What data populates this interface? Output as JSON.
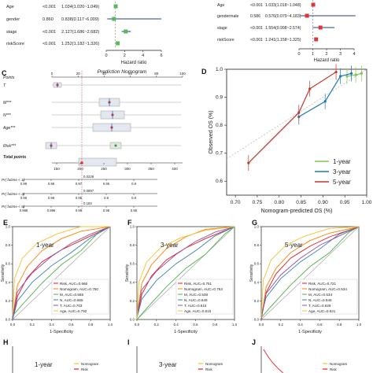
{
  "forest_left": {
    "rows": [
      {
        "name": "Age",
        "p": "<0.001",
        "hr": "1.034(1.020~1.049)"
      },
      {
        "name": "gender",
        "p": "0.860",
        "hr": "0.838(0.117~6.009)"
      },
      {
        "name": "stage",
        "p": "<0.001",
        "hr": "2.127(1.686~2.682)"
      },
      {
        "name": "riskScore",
        "p": "<0.001",
        "hr": "1.252(1.182~1.326)"
      }
    ],
    "axis_ticks": [
      "0",
      "2",
      "4",
      "6"
    ],
    "xlabel": "Hazard ratio"
  },
  "forest_right": {
    "rows": [
      {
        "name": "Age",
        "p": "<0.001",
        "hr": "1.033(1.018~1.048)"
      },
      {
        "name": "gendermale",
        "p": "0.586",
        "hr": "0.576(0.079~4.183)"
      },
      {
        "name": "stage",
        "p": "<0.001",
        "hr": "1.554(0.998~2.574)"
      },
      {
        "name": "riskScore",
        "p": "<0.001",
        "hr": "1.241(1.158~1.325)"
      }
    ],
    "axis_ticks": [
      "0",
      "1",
      "2",
      "3",
      "4"
    ],
    "xlabel": "Hazard ratio"
  },
  "panel_c": {
    "label": "C",
    "title": "Prediction Nomogram",
    "rows": [
      "Points",
      "T",
      "M***",
      "N***",
      "Age***",
      "Risk***",
      "Total points",
      "Pr( futime < 1)",
      "Pr( futime < 3)",
      "Pr( futime < 5)"
    ],
    "points_ticks": [
      "0",
      "20",
      "40",
      "60",
      "80",
      "100"
    ],
    "total_ticks": [
      "150",
      "200",
      "250",
      "300",
      "350",
      "400"
    ],
    "red_values": [
      "0.0228",
      "0.0897",
      "0.183"
    ],
    "pr1_ticks": [
      "0.99",
      "0.98",
      "0.97",
      "0.95",
      "0.9"
    ],
    "pr3_ticks": [
      "0.99",
      "0.98",
      "0.95",
      "0.9",
      "0.8"
    ],
    "pr5_ticks": [
      "0.998",
      "0.996",
      "0.99",
      "0.98",
      "0.95"
    ]
  },
  "panel_d": {
    "label": "D",
    "chart_data": {
      "type": "line",
      "xlabel": "Nomogram-predicted OS (%)",
      "ylabel": "Observed OS (%)",
      "xlim": [
        0.68,
        1.0
      ],
      "ylim": [
        0.55,
        1.0
      ],
      "x_ticks": [
        "0.70",
        "0.75",
        "0.80",
        "0.85",
        "0.90",
        "0.95",
        "1.00"
      ],
      "y_ticks": [
        "0.6",
        "0.7",
        "0.8",
        "0.9",
        "1.0"
      ],
      "series": [
        {
          "name": "1-year",
          "color": "#7ec850",
          "x": [
            0.955,
            0.975,
            0.988
          ],
          "y": [
            0.975,
            0.98,
            0.985
          ]
        },
        {
          "name": "3-year",
          "color": "#1f78b4",
          "x": [
            0.845,
            0.905,
            0.94,
            0.965
          ],
          "y": [
            0.83,
            0.885,
            0.975,
            0.985
          ]
        },
        {
          "name": "5-year",
          "color": "#c0392b",
          "x": [
            0.73,
            0.845,
            0.87,
            0.93
          ],
          "y": [
            0.665,
            0.845,
            0.93,
            0.99
          ]
        }
      ]
    }
  },
  "roc_panels": [
    {
      "label": "E",
      "title": "1-year",
      "legend": [
        "Risk, AUC=0.666",
        "Nomogram, AUC=0.750",
        "M, AUC=0.588",
        "N, AUC=0.655",
        "T, AUC=0.703",
        "Age, AUC=0.792"
      ]
    },
    {
      "label": "F",
      "title": "3-year",
      "legend": [
        "Risk, AUC=0.751",
        "Nomogram, AUC=0.763",
        "M, AUC=0.538",
        "N, AUC=0.649",
        "T, AUC=0.615",
        "Age, AUC=0.615"
      ]
    },
    {
      "label": "G",
      "title": "5-year",
      "legend": [
        "Risk, AUC=0.721",
        "Nomogram, AUC=0.534",
        "M, AUC=0.534",
        "N, AUC=0.645",
        "T, AUC=0.629",
        "Age, AUC=0.621"
      ]
    }
  ],
  "roc_common": {
    "xlabel": "1-Specificity",
    "ylabel": "Sensitivity",
    "ticks": [
      "0.0",
      "0.2",
      "0.4",
      "0.6",
      "0.8",
      "1.0"
    ],
    "colors": [
      "#e41a1c",
      "#ff7f00",
      "#4daf4a",
      "#377eb8",
      "#984ea3",
      "#f2c12e"
    ]
  },
  "bottom_panels": [
    {
      "label": "H",
      "title": "1-year",
      "legend": [
        "Nomogram",
        "Risk"
      ]
    },
    {
      "label": "I",
      "title": "3-year",
      "legend": [
        "Nomogram",
        "Risk"
      ]
    },
    {
      "label": "J",
      "title": "",
      "legend": [
        "Nomogram",
        "Risk"
      ]
    }
  ]
}
